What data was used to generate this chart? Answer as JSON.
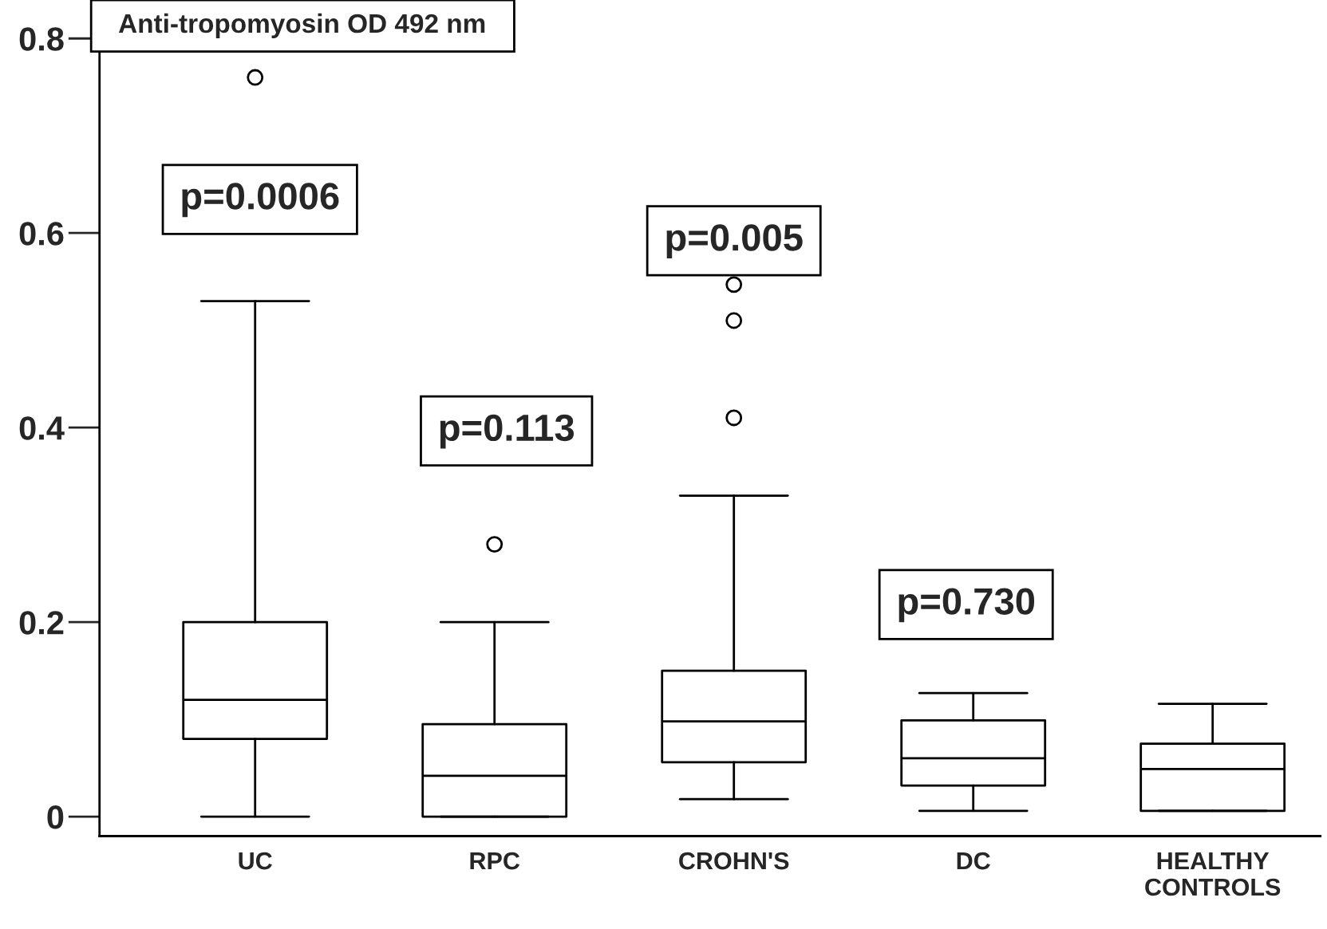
{
  "chart_data": {
    "type": "box",
    "title": "Anti-tropomyosin OD 492 nm",
    "categories": [
      "UC",
      "RPC",
      "CROHN'S",
      "DC",
      "HEALTHY\nCONTROLS"
    ],
    "boxes": [
      {
        "low": 0,
        "q1": 0.08,
        "median": 0.12,
        "q3": 0.2,
        "high": 0.53,
        "outliers": [
          0.76
        ]
      },
      {
        "low": 0,
        "q1": 0,
        "median": 0.042,
        "q3": 0.095,
        "high": 0.2,
        "outliers": [
          0.28
        ]
      },
      {
        "low": 0.018,
        "q1": 0.056,
        "median": 0.098,
        "q3": 0.15,
        "high": 0.33,
        "outliers": [
          0.41,
          0.51,
          0.547
        ]
      },
      {
        "low": 0.006,
        "q1": 0.032,
        "median": 0.06,
        "q3": 0.099,
        "high": 0.127
      },
      {
        "low": 0.006,
        "q1": 0.006,
        "median": 0.049,
        "q3": 0.075,
        "high": 0.116
      }
    ],
    "annotations": [
      "p=0.0006",
      "p=0.113",
      "p=0.005",
      "p=0.730"
    ],
    "ylim": [
      -0.02,
      0.83
    ],
    "yticks": [
      0,
      0.2,
      0.4,
      0.6,
      0.8
    ],
    "grid": false,
    "marker": "circle"
  }
}
